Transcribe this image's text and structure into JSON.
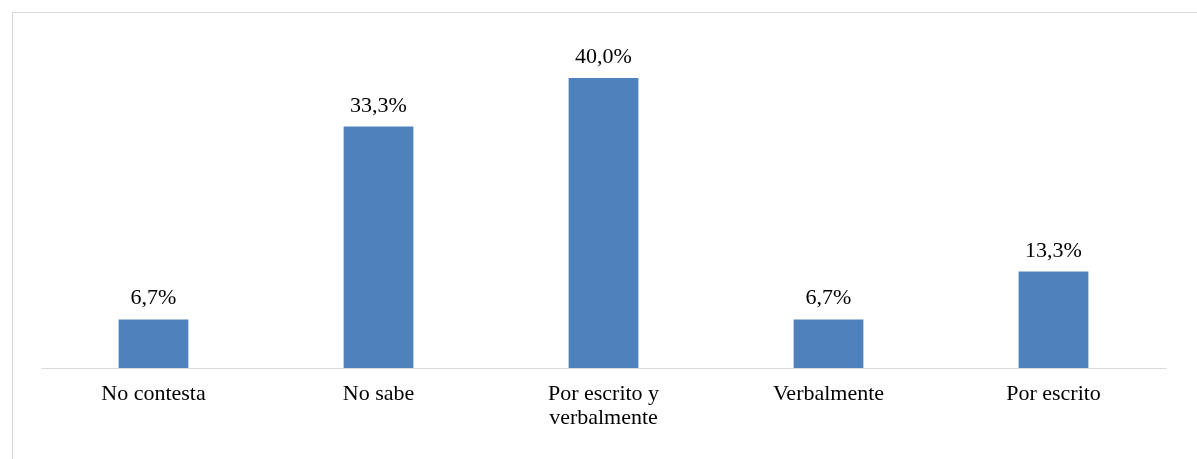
{
  "chart_data": {
    "type": "bar",
    "categories": [
      "No contesta",
      "No sabe",
      "Por escrito y verbalmente",
      "Verbalmente",
      "Por escrito"
    ],
    "values": [
      6.7,
      33.3,
      40.0,
      6.7,
      13.3
    ],
    "value_labels": [
      "6,7%",
      "33,3%",
      "40,0%",
      "6,7%",
      "13,3%"
    ],
    "color": "#4f81bd"
  }
}
